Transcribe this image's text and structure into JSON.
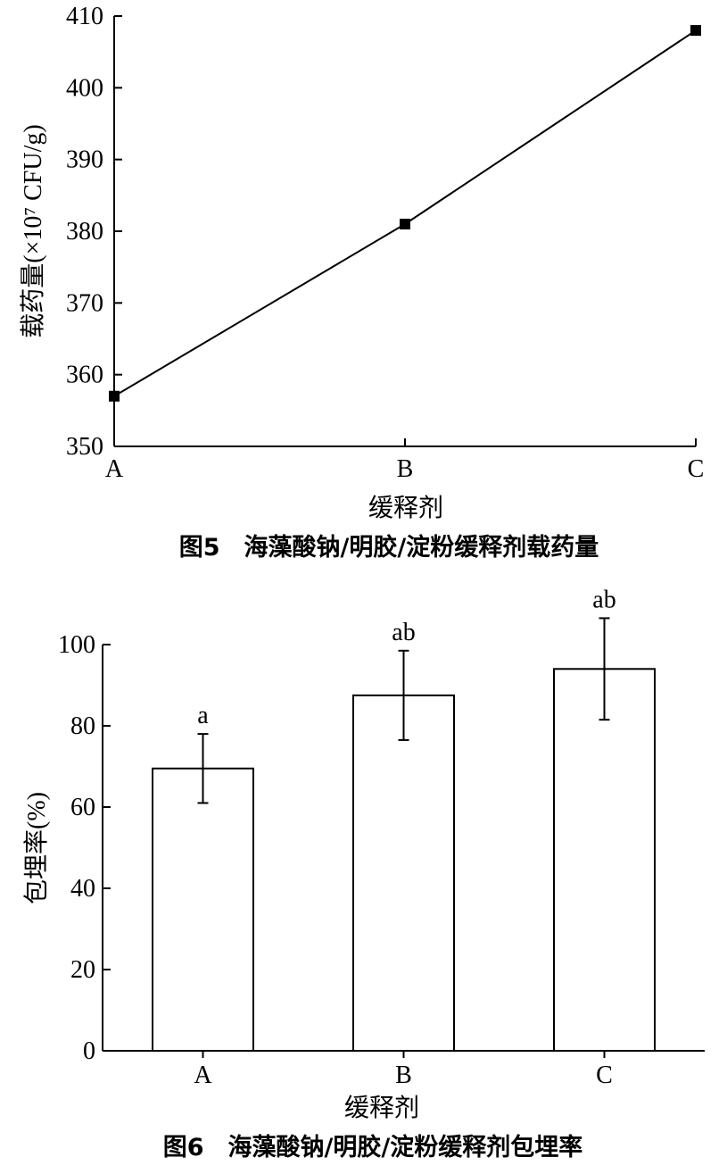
{
  "chart_data": [
    {
      "type": "line",
      "categories": [
        "A",
        "B",
        "C"
      ],
      "series": [
        {
          "values": [
            357,
            381,
            408
          ]
        }
      ],
      "xlabel": "缓释剂",
      "ylabel": "载药量(×10⁷ CFU/g)",
      "ylim": [
        350,
        410
      ],
      "yticks": [
        350,
        360,
        370,
        380,
        390,
        400,
        410
      ],
      "caption": "图5　海藻酸钠/明胶/淀粉缓释剂载药量",
      "color": "#000000"
    },
    {
      "type": "bar",
      "categories": [
        "A",
        "B",
        "C"
      ],
      "series": [
        {
          "values": [
            69.5,
            87.5,
            94
          ],
          "error": [
            8.5,
            11,
            12.5
          ]
        }
      ],
      "annotations": [
        "a",
        "ab",
        "ab"
      ],
      "xlabel": "缓释剂",
      "ylabel": "包埋率(%)",
      "ylim": [
        0,
        100
      ],
      "yticks": [
        0,
        20,
        40,
        60,
        80,
        100
      ],
      "caption": "图6　海藻酸钠/明胶/淀粉缓释剂包埋率",
      "color": "#000000"
    }
  ]
}
